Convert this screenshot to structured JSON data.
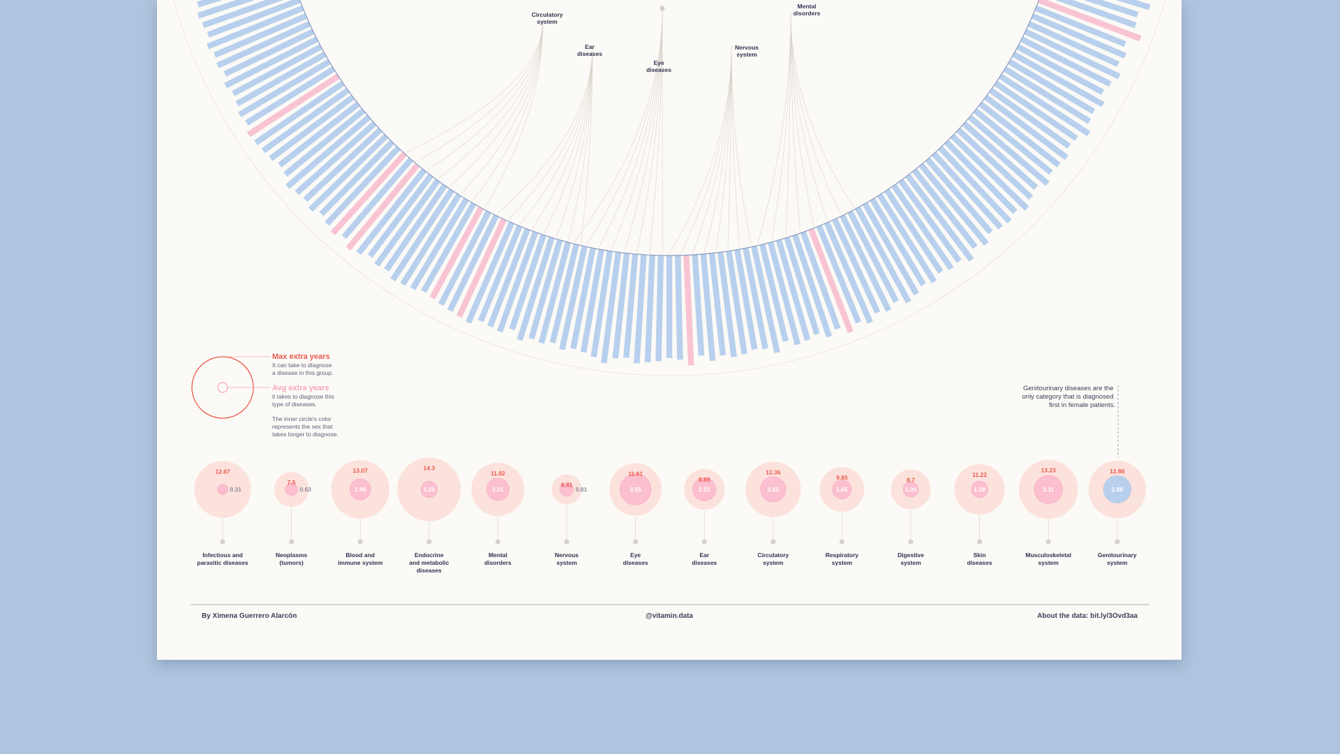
{
  "colors": {
    "background": "#afc4de",
    "poster": "#fcfaf6",
    "male_blue": "#b8d0ed",
    "female_pink": "#f8c4d3",
    "max_red": "#ea5a4c",
    "avg_pink": "#f4a7bb",
    "max_fill": "#fce2dc",
    "label_dark": "#2f3150"
  },
  "radial": {
    "branch_labels": [
      {
        "id": "circulatory",
        "lines": [
          "Circulatory",
          "system"
        ]
      },
      {
        "id": "ear",
        "lines": [
          "Ear",
          "diseases"
        ]
      },
      {
        "id": "eye",
        "lines": [
          "Eye",
          "diseases"
        ]
      },
      {
        "id": "nervous",
        "lines": [
          "Nervous",
          "system"
        ]
      },
      {
        "id": "mental",
        "lines": [
          "Mental",
          "disorders"
        ]
      }
    ],
    "bar_sex": [
      "m",
      "m",
      "m",
      "f",
      "m",
      "m",
      "m",
      "m",
      "m",
      "m",
      "m",
      "m",
      "m",
      "m",
      "m",
      "m",
      "m",
      "m",
      "m",
      "m",
      "m",
      "m",
      "m",
      "m",
      "m",
      "m",
      "m",
      "m",
      "m",
      "m",
      "m",
      "m",
      "m",
      "m",
      "m",
      "m",
      "m",
      "m",
      "m",
      "m",
      "m",
      "m",
      "f",
      "m",
      "m",
      "m",
      "m",
      "m",
      "m",
      "m",
      "m",
      "m",
      "m",
      "m",
      "m",
      "m",
      "m",
      "f",
      "m",
      "m",
      "m",
      "m",
      "m",
      "m",
      "m",
      "m",
      "m",
      "m",
      "m",
      "m",
      "m",
      "m",
      "m",
      "m",
      "m",
      "m",
      "m",
      "m",
      "m",
      "f",
      "m",
      "m",
      "f",
      "m",
      "m",
      "m",
      "m",
      "m",
      "m",
      "m",
      "m",
      "f",
      "m",
      "f",
      "m",
      "m",
      "m",
      "m",
      "m",
      "m",
      "m",
      "m",
      "m",
      "m",
      "m",
      "f",
      "m",
      "m",
      "m",
      "m",
      "m",
      "m",
      "m",
      "m",
      "m",
      "m",
      "m",
      "m",
      "m"
    ],
    "bar_extra": [
      0.8,
      0.2,
      0.3,
      0.9,
      0.1,
      0.4,
      0.2,
      0.6,
      0.3,
      0.1,
      0.5,
      0.2,
      0.3,
      0.7,
      0.2,
      0.1,
      0.4,
      0.3,
      0.2,
      0.5,
      0.1,
      0.3,
      0.6,
      0.2,
      0.4,
      0.3,
      0.1,
      0.5,
      0.2,
      0.7,
      0.3,
      0.4,
      0.2,
      0.5,
      0.3,
      0.6,
      0.8,
      0.4,
      0.7,
      0.5,
      0.9,
      0.6,
      1.0,
      0.5,
      0.8,
      0.4,
      0.6,
      0.7,
      0.3,
      0.9,
      0.5,
      0.4,
      0.6,
      0.7,
      0.5,
      0.8,
      0.4,
      1.0,
      0.6,
      0.5,
      0.7,
      0.8,
      0.9,
      0.6,
      0.7,
      1.1,
      0.8,
      0.6,
      0.5,
      0.7,
      0.4,
      0.6,
      0.5,
      0.8,
      0.3,
      0.7,
      0.6,
      0.5,
      0.9,
      0.8,
      0.7,
      0.6,
      0.5,
      0.4,
      0.6,
      0.7,
      0.8,
      0.5,
      0.6,
      0.4,
      0.7,
      0.9,
      0.5,
      0.8,
      0.6,
      0.4,
      0.7,
      0.5,
      0.6,
      0.8,
      0.4,
      0.3,
      0.5,
      0.6,
      0.7,
      0.8,
      0.5,
      0.6,
      0.4,
      0.3,
      0.5,
      0.2,
      0.4,
      0.3,
      0.5,
      0.2,
      0.3,
      0.4,
      0.2
    ]
  },
  "legend": {
    "max_title": "Max extra years",
    "max_desc": [
      "It can take to diagnose",
      "a disease in this group."
    ],
    "avg_title": "Avg extra years",
    "avg_desc": [
      "it takes to diagnose this",
      "type of diseases."
    ],
    "inner_desc": [
      "The inner circle's color",
      "represents the sex that",
      "takes longer to diagnose."
    ]
  },
  "annotation": {
    "lines": [
      "Genitourinary diseases are the",
      "only category that is diagnosed",
      "first in female patients."
    ]
  },
  "chart_data": {
    "type": "bubble",
    "categories": [
      {
        "label": [
          "Infectious and",
          "parasitic diseases"
        ],
        "max": "12.67",
        "avg": "0.31",
        "sex": "female"
      },
      {
        "label": [
          "Neoplasms",
          "(tumors)"
        ],
        "max": "7.5",
        "avg": "0.63",
        "sex": "female"
      },
      {
        "label": [
          "Blood and",
          "immune system"
        ],
        "max": "13.07",
        "avg": "1.96",
        "sex": "female"
      },
      {
        "label": [
          "Endocrine",
          "and metabolic",
          "diseases"
        ],
        "max": "14.3",
        "avg": "1.25",
        "sex": "female"
      },
      {
        "label": [
          "Mental",
          "disorders"
        ],
        "max": "11.82",
        "avg": "2.21",
        "sex": "female"
      },
      {
        "label": [
          "Nervous",
          "system"
        ],
        "max": "6.41",
        "avg": "0.81",
        "sex": "female"
      },
      {
        "label": [
          "Eye",
          "diseases"
        ],
        "max": "11.61",
        "avg": "3.55",
        "sex": "female"
      },
      {
        "label": [
          "Ear",
          "diseases"
        ],
        "max": "8.89",
        "avg": "2.33",
        "sex": "female"
      },
      {
        "label": [
          "Circulatory",
          "system"
        ],
        "max": "12.36",
        "avg": "2.65",
        "sex": "female"
      },
      {
        "label": [
          "Respiratory",
          "system"
        ],
        "max": "9.85",
        "avg": "1.65",
        "sex": "female"
      },
      {
        "label": [
          "Digestive",
          "system"
        ],
        "max": "8.7",
        "avg": "1.06",
        "sex": "female"
      },
      {
        "label": [
          "Skin",
          "diseases"
        ],
        "max": "11.22",
        "avg": "1.28",
        "sex": "female"
      },
      {
        "label": [
          "Musculoskeletal",
          "system"
        ],
        "max": "13.23",
        "avg": "3.11",
        "sex": "female"
      },
      {
        "label": [
          "Genitourinary",
          "system"
        ],
        "max": "12.86",
        "avg": "2.98",
        "sex": "male"
      }
    ]
  },
  "footer": {
    "author": "By Ximena Guerrero Alarcón",
    "handle": "@vitamin.data",
    "source": "About the data: bit.ly/3Ovd3aa"
  }
}
